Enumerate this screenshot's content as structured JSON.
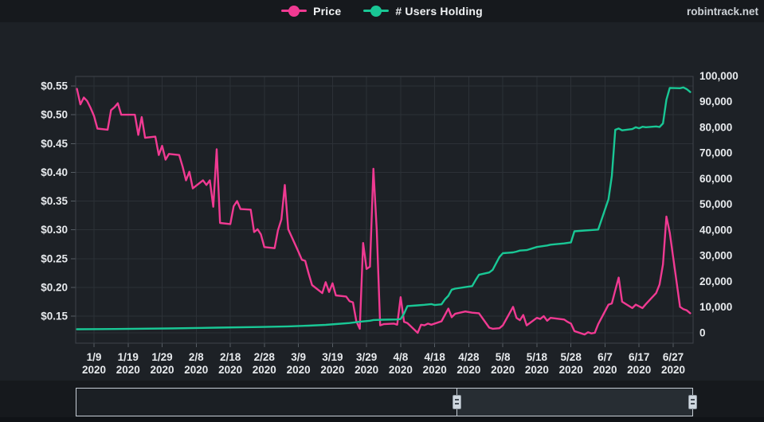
{
  "header": {
    "watermark": "robintrack.net"
  },
  "axes": {
    "left": {
      "labels": [
        "$0.55",
        "$0.50",
        "$0.45",
        "$0.40",
        "$0.35",
        "$0.30",
        "$0.25",
        "$0.20",
        "$0.15"
      ],
      "values": [
        0.55,
        0.5,
        0.45,
        0.4,
        0.35,
        0.3,
        0.25,
        0.2,
        0.15
      ]
    },
    "right": {
      "labels": [
        "100,000",
        "90,000",
        "80,000",
        "70,000",
        "60,000",
        "50,000",
        "40,000",
        "30,000",
        "20,000",
        "10,000",
        "0"
      ],
      "values": [
        100000,
        90000,
        80000,
        70000,
        60000,
        50000,
        40000,
        30000,
        20000,
        10000,
        0
      ]
    },
    "x": {
      "dates": [
        "1/9",
        "1/19",
        "1/29",
        "2/8",
        "2/18",
        "2/28",
        "3/9",
        "3/19",
        "3/29",
        "4/8",
        "4/18",
        "4/28",
        "5/8",
        "5/18",
        "5/28",
        "6/7",
        "6/17",
        "6/27"
      ],
      "year": "2020"
    }
  },
  "chart_data": {
    "type": "line",
    "title": "",
    "legend_position": "top-center",
    "grid": true,
    "x_range": [
      "1/4/2020",
      "7/2/2020"
    ],
    "left_axis": {
      "label": "Price ($)",
      "range": [
        0.103,
        0.567
      ]
    },
    "right_axis": {
      "label": "# Users Holding",
      "range": [
        0,
        100000
      ]
    },
    "series": [
      {
        "name": "Price",
        "color": "#f03a92",
        "axis": "left",
        "points": [
          [
            "1/4",
            0.545
          ],
          [
            "1/5",
            0.518
          ],
          [
            "1/6",
            0.53
          ],
          [
            "1/7",
            0.524
          ],
          [
            "1/8",
            0.512
          ],
          [
            "1/9",
            0.498
          ],
          [
            "1/10",
            0.476
          ],
          [
            "1/13",
            0.474
          ],
          [
            "1/14",
            0.508
          ],
          [
            "1/15",
            0.513
          ],
          [
            "1/16",
            0.52
          ],
          [
            "1/17",
            0.5
          ],
          [
            "1/21",
            0.5
          ],
          [
            "1/22",
            0.465
          ],
          [
            "1/23",
            0.496
          ],
          [
            "1/24",
            0.46
          ],
          [
            "1/27",
            0.462
          ],
          [
            "1/28",
            0.43
          ],
          [
            "1/29",
            0.446
          ],
          [
            "1/30",
            0.422
          ],
          [
            "1/31",
            0.432
          ],
          [
            "2/3",
            0.43
          ],
          [
            "2/4",
            0.41
          ],
          [
            "2/5",
            0.386
          ],
          [
            "2/6",
            0.401
          ],
          [
            "2/7",
            0.372
          ],
          [
            "2/10",
            0.386
          ],
          [
            "2/11",
            0.378
          ],
          [
            "2/12",
            0.386
          ],
          [
            "2/13",
            0.34
          ],
          [
            "2/14",
            0.44
          ],
          [
            "2/15",
            0.312
          ],
          [
            "2/18",
            0.31
          ],
          [
            "2/19",
            0.341
          ],
          [
            "2/20",
            0.35
          ],
          [
            "2/21",
            0.336
          ],
          [
            "2/24",
            0.335
          ],
          [
            "2/25",
            0.296
          ],
          [
            "2/26",
            0.301
          ],
          [
            "2/27",
            0.292
          ],
          [
            "2/28",
            0.27
          ],
          [
            "3/2",
            0.268
          ],
          [
            "3/3",
            0.299
          ],
          [
            "3/4",
            0.318
          ],
          [
            "3/5",
            0.378
          ],
          [
            "3/6",
            0.301
          ],
          [
            "3/9",
            0.262
          ],
          [
            "3/10",
            0.248
          ],
          [
            "3/11",
            0.246
          ],
          [
            "3/12",
            0.224
          ],
          [
            "3/13",
            0.204
          ],
          [
            "3/16",
            0.19
          ],
          [
            "3/17",
            0.209
          ],
          [
            "3/18",
            0.192
          ],
          [
            "3/19",
            0.207
          ],
          [
            "3/20",
            0.186
          ],
          [
            "3/23",
            0.184
          ],
          [
            "3/24",
            0.176
          ],
          [
            "3/25",
            0.174
          ],
          [
            "3/26",
            0.141
          ],
          [
            "3/27",
            0.128
          ],
          [
            "3/28",
            0.277
          ],
          [
            "3/29",
            0.232
          ],
          [
            "3/30",
            0.236
          ],
          [
            "3/31",
            0.406
          ],
          [
            "4/1",
            0.3
          ],
          [
            "4/2",
            0.134
          ],
          [
            "4/3",
            0.136
          ],
          [
            "4/6",
            0.137
          ],
          [
            "4/7",
            0.135
          ],
          [
            "4/8",
            0.183
          ],
          [
            "4/9",
            0.14
          ],
          [
            "4/10",
            0.138
          ],
          [
            "4/13",
            0.121
          ],
          [
            "4/14",
            0.135
          ],
          [
            "4/15",
            0.134
          ],
          [
            "4/16",
            0.137
          ],
          [
            "4/17",
            0.135
          ],
          [
            "4/20",
            0.141
          ],
          [
            "4/22",
            0.163
          ],
          [
            "4/23",
            0.148
          ],
          [
            "4/24",
            0.154
          ],
          [
            "4/27",
            0.158
          ],
          [
            "4/29",
            0.156
          ],
          [
            "5/1",
            0.155
          ],
          [
            "5/4",
            0.13
          ],
          [
            "5/5",
            0.128
          ],
          [
            "5/7",
            0.129
          ],
          [
            "5/8",
            0.134
          ],
          [
            "5/11",
            0.166
          ],
          [
            "5/12",
            0.147
          ],
          [
            "5/13",
            0.143
          ],
          [
            "5/14",
            0.152
          ],
          [
            "5/15",
            0.134
          ],
          [
            "5/18",
            0.147
          ],
          [
            "5/19",
            0.145
          ],
          [
            "5/20",
            0.15
          ],
          [
            "5/21",
            0.142
          ],
          [
            "5/22",
            0.147
          ],
          [
            "5/26",
            0.144
          ],
          [
            "5/27",
            0.14
          ],
          [
            "5/28",
            0.137
          ],
          [
            "5/29",
            0.124
          ],
          [
            "6/1",
            0.118
          ],
          [
            "6/2",
            0.122
          ],
          [
            "6/3",
            0.12
          ],
          [
            "6/4",
            0.121
          ],
          [
            "6/5",
            0.136
          ],
          [
            "6/8",
            0.17
          ],
          [
            "6/9",
            0.172
          ],
          [
            "6/10",
            0.195
          ],
          [
            "6/11",
            0.217
          ],
          [
            "6/12",
            0.175
          ],
          [
            "6/15",
            0.164
          ],
          [
            "6/16",
            0.17
          ],
          [
            "6/17",
            0.167
          ],
          [
            "6/18",
            0.164
          ],
          [
            "6/19",
            0.171
          ],
          [
            "6/22",
            0.19
          ],
          [
            "6/23",
            0.205
          ],
          [
            "6/24",
            0.24
          ],
          [
            "6/25",
            0.323
          ],
          [
            "6/26",
            0.295
          ],
          [
            "6/29",
            0.166
          ],
          [
            "6/30",
            0.162
          ],
          [
            "7/1",
            0.16
          ],
          [
            "7/2",
            0.155
          ]
        ]
      },
      {
        "name": "# Users Holding",
        "color": "#19c795",
        "axis": "right",
        "points": [
          [
            "1/4",
            1400
          ],
          [
            "1/15",
            1500
          ],
          [
            "1/31",
            1700
          ],
          [
            "2/14",
            2000
          ],
          [
            "2/28",
            2300
          ],
          [
            "3/6",
            2500
          ],
          [
            "3/12",
            2800
          ],
          [
            "3/17",
            3100
          ],
          [
            "3/20",
            3400
          ],
          [
            "3/24",
            3800
          ],
          [
            "3/27",
            4300
          ],
          [
            "3/30",
            4700
          ],
          [
            "3/31",
            5000
          ],
          [
            "4/3",
            5100
          ],
          [
            "4/7",
            5200
          ],
          [
            "4/8",
            5400
          ],
          [
            "4/9",
            7500
          ],
          [
            "4/10",
            10400
          ],
          [
            "4/13",
            10700
          ],
          [
            "4/15",
            10900
          ],
          [
            "4/17",
            11200
          ],
          [
            "4/18",
            10800
          ],
          [
            "4/20",
            11100
          ],
          [
            "4/21",
            13000
          ],
          [
            "4/22",
            14400
          ],
          [
            "4/23",
            16800
          ],
          [
            "4/24",
            17200
          ],
          [
            "4/27",
            17800
          ],
          [
            "4/29",
            18200
          ],
          [
            "4/30",
            20500
          ],
          [
            "5/1",
            22600
          ],
          [
            "5/4",
            23500
          ],
          [
            "5/5",
            24500
          ],
          [
            "5/6",
            27000
          ],
          [
            "5/7",
            29500
          ],
          [
            "5/8",
            31000
          ],
          [
            "5/11",
            31300
          ],
          [
            "5/12",
            31600
          ],
          [
            "5/13",
            32000
          ],
          [
            "5/15",
            32200
          ],
          [
            "5/18",
            33400
          ],
          [
            "5/19",
            33600
          ],
          [
            "5/21",
            34000
          ],
          [
            "5/22",
            34300
          ],
          [
            "5/26",
            34800
          ],
          [
            "5/28",
            35200
          ],
          [
            "5/29",
            39500
          ],
          [
            "6/1",
            39800
          ],
          [
            "6/3",
            40000
          ],
          [
            "6/5",
            40200
          ],
          [
            "6/8",
            52000
          ],
          [
            "6/9",
            61000
          ],
          [
            "6/10",
            79000
          ],
          [
            "6/11",
            79500
          ],
          [
            "6/12",
            78800
          ],
          [
            "6/15",
            79300
          ],
          [
            "6/16",
            80000
          ],
          [
            "6/17",
            79600
          ],
          [
            "6/18",
            80200
          ],
          [
            "6/19",
            80000
          ],
          [
            "6/22",
            80300
          ],
          [
            "6/23",
            80100
          ],
          [
            "6/24",
            81500
          ],
          [
            "6/25",
            90700
          ],
          [
            "6/26",
            95300
          ],
          [
            "6/29",
            95200
          ],
          [
            "6/30",
            95500
          ],
          [
            "7/1",
            94800
          ],
          [
            "7/2",
            93700
          ]
        ]
      }
    ]
  }
}
